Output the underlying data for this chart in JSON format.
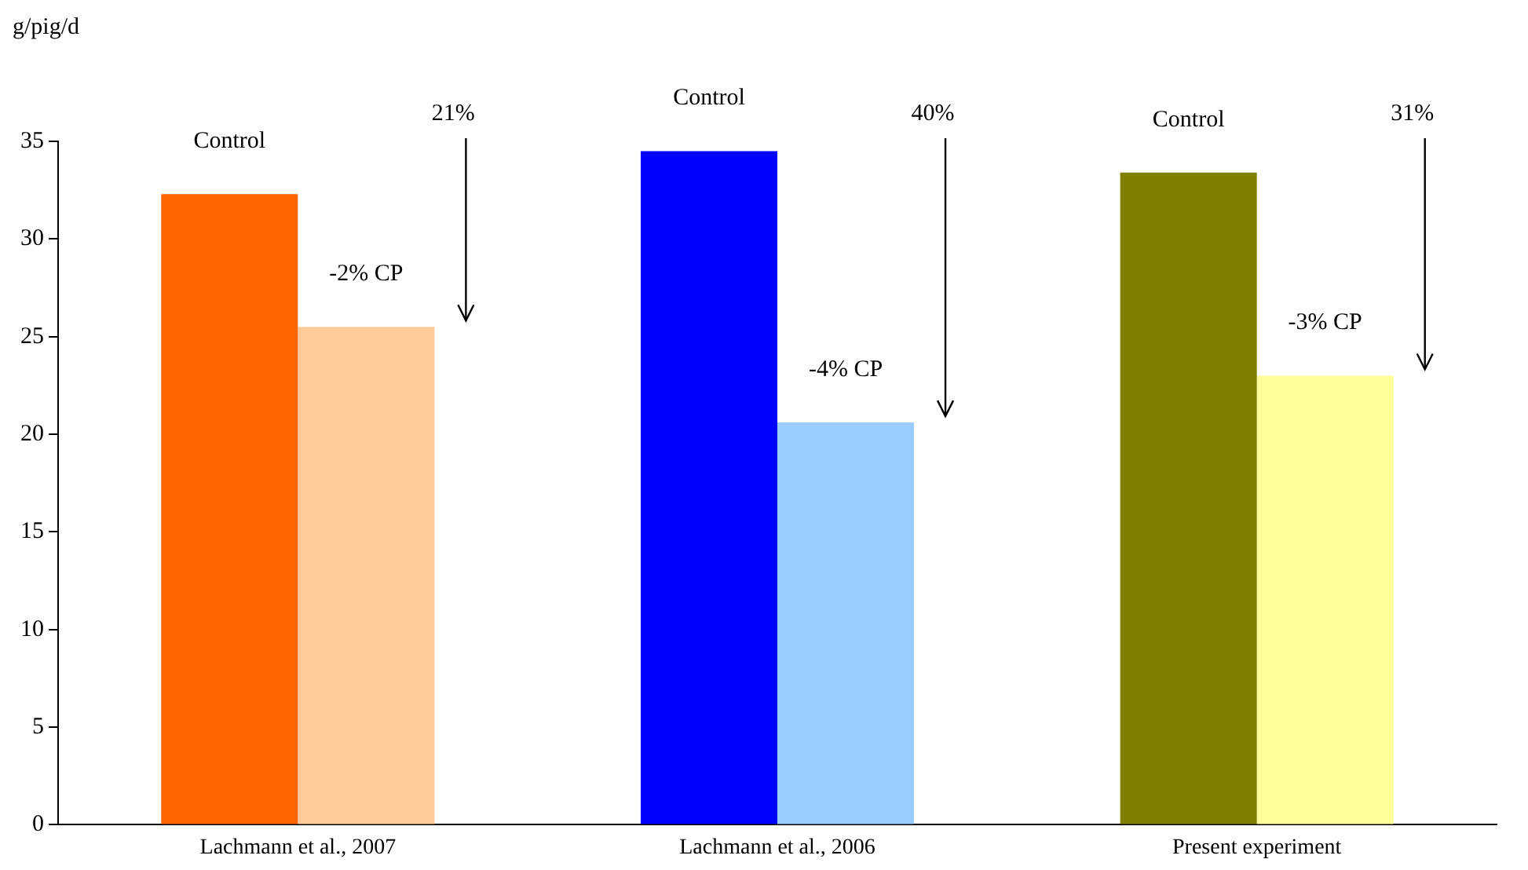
{
  "chart_data": {
    "type": "bar",
    "ylabel": "g/pig/d",
    "categories": [
      "Lachmann et al., 2007",
      "Lachmann et al., 2006",
      "Present experiment"
    ],
    "series": [
      {
        "colors": [
          "#ff6600",
          "#0000ff",
          "#808000"
        ],
        "values": [
          32.3,
          34.5,
          33.4
        ]
      },
      {
        "colors": [
          "#ffcc99",
          "#99ccff",
          "#ffff99"
        ],
        "values": [
          25.5,
          20.6,
          23.0
        ]
      }
    ],
    "annotations": [
      "Control",
      "-2% CP",
      "21%",
      "Control",
      "-4% CP",
      "40%",
      "Control",
      "-3% CP",
      "31%"
    ],
    "ylim": [
      0,
      35
    ],
    "yticks": [
      0,
      5,
      10,
      15,
      20,
      25,
      30,
      35
    ],
    "grid": false,
    "legend": false
  }
}
